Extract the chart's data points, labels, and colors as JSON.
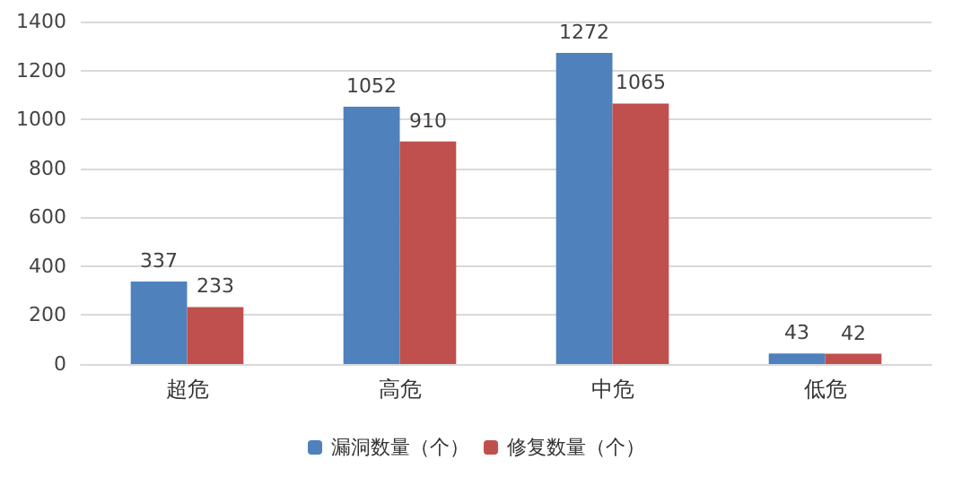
{
  "chart_data": {
    "type": "bar",
    "categories": [
      "超危",
      "高危",
      "中危",
      "低危"
    ],
    "series": [
      {
        "name": "漏洞数量（个）",
        "color": "#4f81bd",
        "values": [
          337,
          1052,
          1272,
          43
        ]
      },
      {
        "name": "修复数量（个）",
        "color": "#c0504d",
        "values": [
          233,
          910,
          1065,
          42
        ]
      }
    ],
    "ylim": [
      0,
      1400
    ],
    "yticks": [
      0,
      200,
      400,
      600,
      800,
      1000,
      1200,
      1400
    ],
    "grid": "y",
    "legend": "bottom",
    "data_labels": true
  }
}
